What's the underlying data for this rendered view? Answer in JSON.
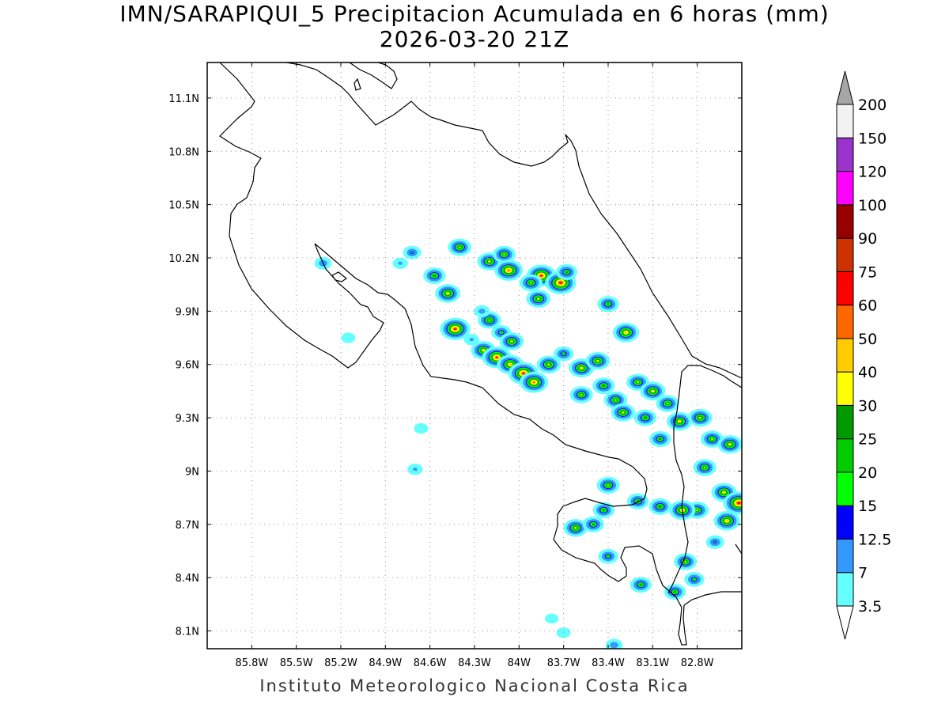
{
  "title": {
    "line1": "IMN/SARAPIQUI_5 Precipitacion Acumulada en 6 horas (mm)",
    "line2": "2026-03-20 21Z"
  },
  "footer": "Instituto Meteorologico Nacional Costa Rica",
  "map": {
    "lon_range": [
      -86.1,
      -82.5
    ],
    "lat_range": [
      8.0,
      11.3
    ],
    "lon_ticks": [
      {
        "value": -85.8,
        "label": "85.8W"
      },
      {
        "value": -85.5,
        "label": "85.5W"
      },
      {
        "value": -85.2,
        "label": "85.2W"
      },
      {
        "value": -84.9,
        "label": "84.9W"
      },
      {
        "value": -84.6,
        "label": "84.6W"
      },
      {
        "value": -84.3,
        "label": "84.3W"
      },
      {
        "value": -84.0,
        "label": "84W"
      },
      {
        "value": -83.7,
        "label": "83.7W"
      },
      {
        "value": -83.4,
        "label": "83.4W"
      },
      {
        "value": -83.1,
        "label": "83.1W"
      },
      {
        "value": -82.8,
        "label": "82.8W"
      }
    ],
    "lat_ticks": [
      {
        "value": 8.1,
        "label": "8.1N"
      },
      {
        "value": 8.4,
        "label": "8.4N"
      },
      {
        "value": 8.7,
        "label": "8.7N"
      },
      {
        "value": 9.0,
        "label": "9N"
      },
      {
        "value": 9.3,
        "label": "9.3N"
      },
      {
        "value": 9.6,
        "label": "9.6N"
      },
      {
        "value": 9.9,
        "label": "9.9N"
      },
      {
        "value": 10.2,
        "label": "10.2N"
      },
      {
        "value": 10.5,
        "label": "10.5N"
      },
      {
        "value": 10.8,
        "label": "10.8N"
      },
      {
        "value": 11.1,
        "label": "11.1N"
      }
    ],
    "grid": "dotted"
  },
  "legend": {
    "levels": [
      "3.5",
      "7",
      "12.5",
      "15",
      "20",
      "25",
      "30",
      "40",
      "50",
      "60",
      "75",
      "90",
      "100",
      "120",
      "150",
      "200"
    ],
    "colors": [
      "#66ffff",
      "#3399ff",
      "#0000ff",
      "#00ff00",
      "#00cc00",
      "#009900",
      "#ffff00",
      "#ffcc00",
      "#ff6600",
      "#ff0000",
      "#cc3300",
      "#990000",
      "#ff00ff",
      "#9933cc",
      "#f2f2f2"
    ],
    "over_color": "#a6a6a6"
  },
  "precip_cells": [
    {
      "lon": -84.4,
      "lat": 10.26,
      "mm": 32
    },
    {
      "lon": -84.2,
      "lat": 10.18,
      "mm": 35
    },
    {
      "lon": -84.1,
      "lat": 10.22,
      "mm": 30
    },
    {
      "lon": -84.07,
      "lat": 10.13,
      "mm": 55
    },
    {
      "lon": -84.48,
      "lat": 10.0,
      "mm": 40
    },
    {
      "lon": -84.57,
      "lat": 10.1,
      "mm": 28
    },
    {
      "lon": -84.72,
      "lat": 10.23,
      "mm": 15
    },
    {
      "lon": -84.8,
      "lat": 10.17,
      "mm": 8
    },
    {
      "lon": -85.32,
      "lat": 10.17,
      "mm": 12
    },
    {
      "lon": -83.85,
      "lat": 10.1,
      "mm": 62
    },
    {
      "lon": -83.92,
      "lat": 10.06,
      "mm": 30
    },
    {
      "lon": -83.72,
      "lat": 10.06,
      "mm": 70
    },
    {
      "lon": -83.68,
      "lat": 10.12,
      "mm": 25
    },
    {
      "lon": -83.87,
      "lat": 9.97,
      "mm": 35
    },
    {
      "lon": -83.4,
      "lat": 9.94,
      "mm": 25
    },
    {
      "lon": -83.28,
      "lat": 9.78,
      "mm": 45
    },
    {
      "lon": -84.43,
      "lat": 9.8,
      "mm": 65
    },
    {
      "lon": -84.2,
      "lat": 9.85,
      "mm": 32
    },
    {
      "lon": -84.12,
      "lat": 9.78,
      "mm": 20
    },
    {
      "lon": -84.05,
      "lat": 9.73,
      "mm": 35
    },
    {
      "lon": -84.24,
      "lat": 9.68,
      "mm": 38
    },
    {
      "lon": -84.15,
      "lat": 9.64,
      "mm": 60
    },
    {
      "lon": -84.06,
      "lat": 9.6,
      "mm": 45
    },
    {
      "lon": -83.97,
      "lat": 9.55,
      "mm": 65
    },
    {
      "lon": -83.9,
      "lat": 9.5,
      "mm": 55
    },
    {
      "lon": -83.8,
      "lat": 9.6,
      "mm": 35
    },
    {
      "lon": -83.7,
      "lat": 9.66,
      "mm": 20
    },
    {
      "lon": -83.58,
      "lat": 9.58,
      "mm": 40
    },
    {
      "lon": -83.47,
      "lat": 9.62,
      "mm": 35
    },
    {
      "lon": -83.43,
      "lat": 9.48,
      "mm": 28
    },
    {
      "lon": -83.58,
      "lat": 9.43,
      "mm": 30
    },
    {
      "lon": -83.35,
      "lat": 9.4,
      "mm": 32
    },
    {
      "lon": -83.2,
      "lat": 9.5,
      "mm": 30
    },
    {
      "lon": -83.1,
      "lat": 9.45,
      "mm": 40
    },
    {
      "lon": -83.3,
      "lat": 9.33,
      "mm": 35
    },
    {
      "lon": -83.15,
      "lat": 9.3,
      "mm": 28
    },
    {
      "lon": -83.0,
      "lat": 9.38,
      "mm": 30
    },
    {
      "lon": -82.92,
      "lat": 9.28,
      "mm": 40
    },
    {
      "lon": -82.78,
      "lat": 9.3,
      "mm": 35
    },
    {
      "lon": -82.7,
      "lat": 9.18,
      "mm": 30
    },
    {
      "lon": -82.58,
      "lat": 9.15,
      "mm": 38
    },
    {
      "lon": -83.05,
      "lat": 9.18,
      "mm": 25
    },
    {
      "lon": -82.75,
      "lat": 9.02,
      "mm": 30
    },
    {
      "lon": -82.62,
      "lat": 8.88,
      "mm": 40
    },
    {
      "lon": -82.52,
      "lat": 8.82,
      "mm": 70
    },
    {
      "lon": -82.6,
      "lat": 8.72,
      "mm": 45
    },
    {
      "lon": -82.8,
      "lat": 8.78,
      "mm": 30
    },
    {
      "lon": -82.9,
      "lat": 8.78,
      "mm": 45
    },
    {
      "lon": -83.05,
      "lat": 8.8,
      "mm": 28
    },
    {
      "lon": -83.2,
      "lat": 8.83,
      "mm": 25
    },
    {
      "lon": -83.4,
      "lat": 8.92,
      "mm": 30
    },
    {
      "lon": -83.62,
      "lat": 8.68,
      "mm": 35
    },
    {
      "lon": -83.5,
      "lat": 8.7,
      "mm": 25
    },
    {
      "lon": -83.43,
      "lat": 8.78,
      "mm": 25
    },
    {
      "lon": -83.4,
      "lat": 8.52,
      "mm": 20
    },
    {
      "lon": -83.18,
      "lat": 8.36,
      "mm": 25
    },
    {
      "lon": -82.95,
      "lat": 8.32,
      "mm": 25
    },
    {
      "lon": -82.88,
      "lat": 8.49,
      "mm": 30
    },
    {
      "lon": -82.82,
      "lat": 8.39,
      "mm": 20
    },
    {
      "lon": -82.68,
      "lat": 8.6,
      "mm": 15
    },
    {
      "lon": -84.25,
      "lat": 9.9,
      "mm": 10
    },
    {
      "lon": -84.32,
      "lat": 9.74,
      "mm": 8
    },
    {
      "lon": -85.15,
      "lat": 9.75,
      "mm": 6
    },
    {
      "lon": -84.66,
      "lat": 9.24,
      "mm": 6
    },
    {
      "lon": -84.7,
      "lat": 9.01,
      "mm": 8
    },
    {
      "lon": -83.7,
      "lat": 8.09,
      "mm": 6
    },
    {
      "lon": -83.78,
      "lat": 8.17,
      "mm": 5
    },
    {
      "lon": -83.36,
      "lat": 8.02,
      "mm": 12
    }
  ]
}
